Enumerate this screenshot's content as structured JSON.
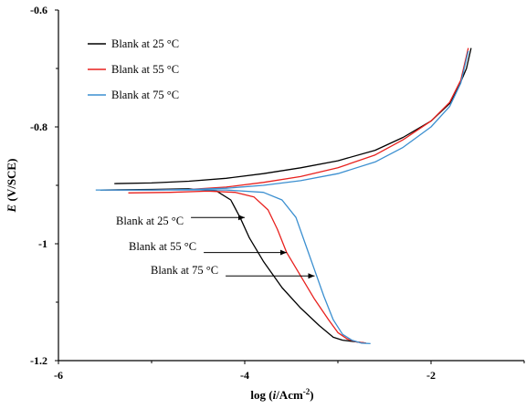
{
  "chart_data": {
    "type": "line",
    "xlabel_parts": [
      "log (",
      "i",
      "/Acm",
      "-2",
      ")"
    ],
    "ylabel_parts": [
      "E",
      " (V/SCE)"
    ],
    "xlim": [
      -6,
      -1
    ],
    "ylim": [
      -1.2,
      -0.6
    ],
    "xticks": [
      -6,
      -4,
      -2
    ],
    "xtick_labels": [
      "-6",
      "-4",
      "-2"
    ],
    "yticks": [
      -0.6,
      -0.8,
      -1,
      -1.2
    ],
    "ytick_labels": [
      "-0.6",
      "-0.8",
      "-1",
      "-1.2"
    ],
    "grid": false,
    "legend_position": "top-left",
    "series": [
      {
        "name": "Blank at 25 °C",
        "color": "#000000",
        "anodic": [
          [
            -5.4,
            -0.897
          ],
          [
            -5.0,
            -0.896
          ],
          [
            -4.6,
            -0.893
          ],
          [
            -4.2,
            -0.888
          ],
          [
            -3.8,
            -0.88
          ],
          [
            -3.4,
            -0.87
          ],
          [
            -3.0,
            -0.858
          ],
          [
            -2.6,
            -0.84
          ],
          [
            -2.3,
            -0.818
          ],
          [
            -2.0,
            -0.79
          ],
          [
            -1.8,
            -0.76
          ],
          [
            -1.7,
            -0.73
          ],
          [
            -1.62,
            -0.7
          ],
          [
            -1.57,
            -0.665
          ]
        ],
        "cathodic": [
          [
            -5.55,
            -0.908
          ],
          [
            -5.0,
            -0.907
          ],
          [
            -4.6,
            -0.906
          ],
          [
            -4.3,
            -0.91
          ],
          [
            -4.15,
            -0.925
          ],
          [
            -4.05,
            -0.955
          ],
          [
            -3.95,
            -0.99
          ],
          [
            -3.8,
            -1.03
          ],
          [
            -3.6,
            -1.075
          ],
          [
            -3.4,
            -1.11
          ],
          [
            -3.2,
            -1.14
          ],
          [
            -3.05,
            -1.16
          ],
          [
            -2.95,
            -1.165
          ],
          [
            -2.8,
            -1.168
          ],
          [
            -2.7,
            -1.17
          ]
        ]
      },
      {
        "name": "Blank at 55 °C",
        "color": "#e8211e",
        "anodic": [
          [
            -5.5,
            -0.908
          ],
          [
            -5.0,
            -0.908
          ],
          [
            -4.6,
            -0.907
          ],
          [
            -4.2,
            -0.903
          ],
          [
            -3.8,
            -0.895
          ],
          [
            -3.4,
            -0.885
          ],
          [
            -3.0,
            -0.87
          ],
          [
            -2.6,
            -0.848
          ],
          [
            -2.3,
            -0.822
          ],
          [
            -2.0,
            -0.79
          ],
          [
            -1.8,
            -0.758
          ],
          [
            -1.68,
            -0.72
          ],
          [
            -1.6,
            -0.665
          ]
        ],
        "cathodic": [
          [
            -5.25,
            -0.913
          ],
          [
            -4.8,
            -0.912
          ],
          [
            -4.4,
            -0.91
          ],
          [
            -4.1,
            -0.912
          ],
          [
            -3.9,
            -0.92
          ],
          [
            -3.75,
            -0.942
          ],
          [
            -3.65,
            -0.975
          ],
          [
            -3.55,
            -1.015
          ],
          [
            -3.4,
            -1.055
          ],
          [
            -3.25,
            -1.095
          ],
          [
            -3.1,
            -1.13
          ],
          [
            -3.0,
            -1.152
          ],
          [
            -2.9,
            -1.163
          ],
          [
            -2.8,
            -1.168
          ],
          [
            -2.7,
            -1.17
          ]
        ]
      },
      {
        "name": "Blank at 75 °C",
        "color": "#3b8fd0",
        "anodic": [
          [
            -5.6,
            -0.908
          ],
          [
            -5.0,
            -0.908
          ],
          [
            -4.6,
            -0.907
          ],
          [
            -4.2,
            -0.905
          ],
          [
            -3.8,
            -0.9
          ],
          [
            -3.4,
            -0.892
          ],
          [
            -3.0,
            -0.88
          ],
          [
            -2.6,
            -0.86
          ],
          [
            -2.3,
            -0.835
          ],
          [
            -2.0,
            -0.8
          ],
          [
            -1.8,
            -0.765
          ],
          [
            -1.68,
            -0.725
          ],
          [
            -1.6,
            -0.67
          ]
        ],
        "cathodic": [
          [
            -5.55,
            -0.908
          ],
          [
            -4.8,
            -0.908
          ],
          [
            -4.2,
            -0.908
          ],
          [
            -3.8,
            -0.912
          ],
          [
            -3.6,
            -0.925
          ],
          [
            -3.45,
            -0.955
          ],
          [
            -3.35,
            -1.0
          ],
          [
            -3.25,
            -1.045
          ],
          [
            -3.15,
            -1.09
          ],
          [
            -3.05,
            -1.13
          ],
          [
            -2.95,
            -1.155
          ],
          [
            -2.85,
            -1.165
          ],
          [
            -2.75,
            -1.17
          ],
          [
            -2.65,
            -1.171
          ]
        ]
      }
    ],
    "annotations": [
      {
        "text": "Blank at 25 °C",
        "arrow_to": [
          -4.0,
          -0.955
        ]
      },
      {
        "text": "Blank at 55 °C",
        "arrow_to": [
          -3.55,
          -1.015
        ]
      },
      {
        "text": "Blank at 75 °C",
        "arrow_to": [
          -3.25,
          -1.055
        ]
      }
    ]
  }
}
